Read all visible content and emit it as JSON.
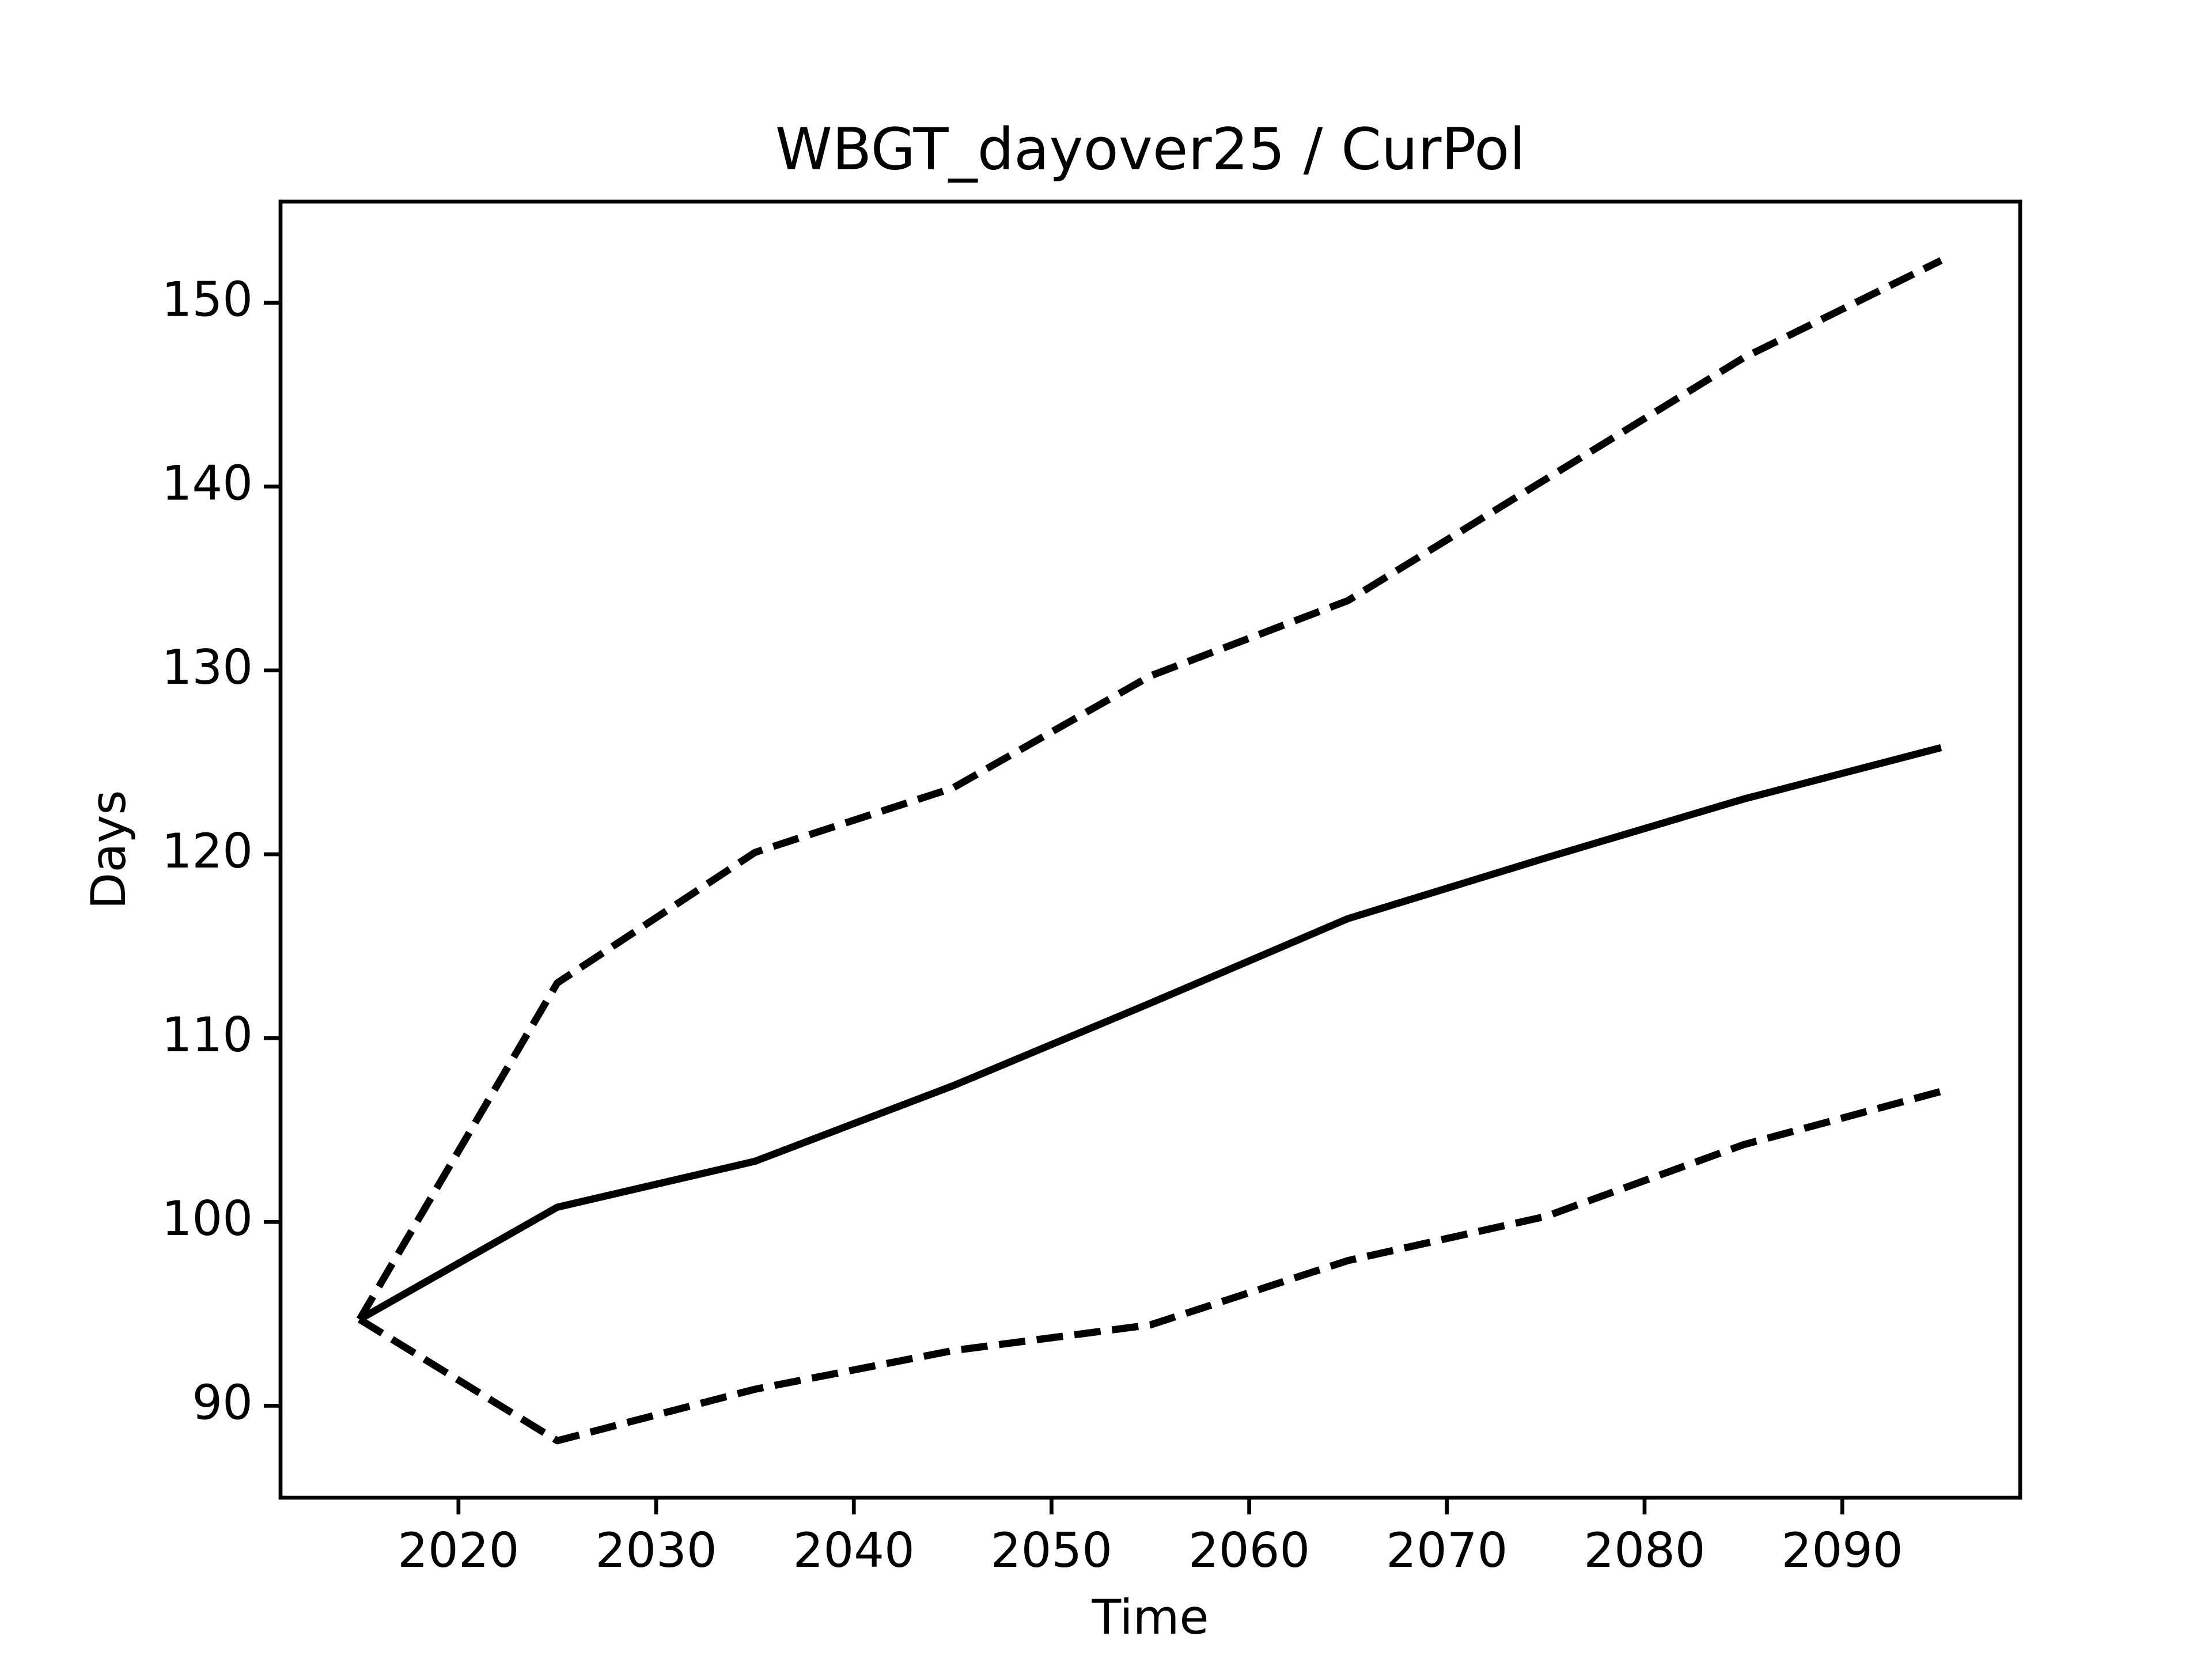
{
  "chart_data": {
    "type": "line",
    "title": "WBGT_dayover25 / CurPol",
    "xlabel": "Time",
    "ylabel": "Days",
    "x": [
      2015,
      2025,
      2035,
      2045,
      2055,
      2065,
      2075,
      2085,
      2095
    ],
    "series": [
      {
        "color": "#000000",
        "dashed": false,
        "values": [
          94.7,
          100.8,
          103.3,
          107.4,
          111.9,
          116.5,
          119.8,
          123.0,
          125.8
        ]
      },
      {
        "color": "#000000",
        "dashed": true,
        "values": [
          94.7,
          113.0,
          120.1,
          123.6,
          129.7,
          133.8,
          140.4,
          147.0,
          152.3
        ]
      },
      {
        "color": "#000000",
        "dashed": true,
        "values": [
          94.7,
          88.1,
          90.9,
          93.0,
          94.4,
          97.9,
          100.3,
          104.2,
          107.1
        ]
      }
    ],
    "xlim": [
      2011,
      2099
    ],
    "xticks": [
      2020,
      2030,
      2040,
      2050,
      2060,
      2070,
      2080,
      2090
    ],
    "ylim": [
      85,
      155.5
    ],
    "yticks": [
      90,
      100,
      110,
      120,
      130,
      140,
      150
    ],
    "grid": false
  }
}
